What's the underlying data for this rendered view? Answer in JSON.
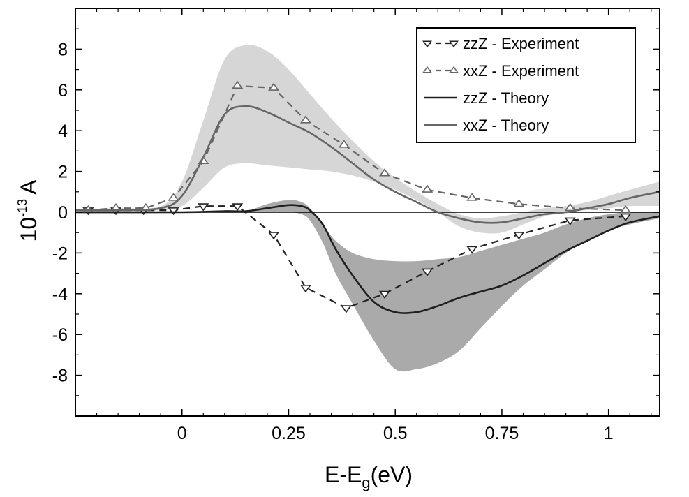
{
  "chart_data": {
    "type": "line",
    "xlabel_main": "E-E",
    "xlabel_sub": "g",
    "xlabel_unit": "(eV)",
    "ylabel_base": "10",
    "ylabel_exp": "-13",
    "ylabel_var": "A",
    "xlim": [
      -0.25,
      1.12
    ],
    "ylim": [
      -10,
      10
    ],
    "xticks": [
      0,
      0.25,
      0.5,
      0.75,
      1
    ],
    "xtick_labels": [
      "0",
      "0.25",
      "0.5",
      "0.75",
      "1"
    ],
    "yticks": [
      -8,
      -6,
      -4,
      -2,
      0,
      2,
      4,
      6,
      8
    ],
    "ytick_labels": [
      "-8",
      "-6",
      "-4",
      "-2",
      "0",
      "2",
      "4",
      "6",
      "8"
    ],
    "legend_position": "top-right",
    "colors": {
      "zz_band": "#aaaaaa",
      "xx_band": "#d6d6d6",
      "zz": "#1f1f1f",
      "xx": "#666666"
    },
    "bands": [
      {
        "for": "xxZ",
        "x": [
          -0.25,
          -0.15,
          -0.05,
          0.0,
          0.05,
          0.1,
          0.15,
          0.2,
          0.25,
          0.3,
          0.35,
          0.4,
          0.45,
          0.5,
          0.55,
          0.6,
          0.65,
          0.7,
          0.75,
          0.8,
          0.85,
          0.9,
          0.95,
          1.0,
          1.05,
          1.12
        ],
        "upper": [
          0.15,
          0.2,
          0.3,
          1.5,
          4.5,
          7.5,
          8.2,
          7.9,
          7.0,
          5.8,
          4.6,
          3.5,
          2.5,
          1.7,
          1.0,
          0.4,
          -0.1,
          -0.3,
          -0.2,
          0.0,
          0.2,
          0.3,
          0.5,
          0.8,
          1.1,
          1.5
        ],
        "lower": [
          0.1,
          0.1,
          0.1,
          0.3,
          1.2,
          2.2,
          2.4,
          2.3,
          2.2,
          2.1,
          2.0,
          1.8,
          1.5,
          1.1,
          0.6,
          0.0,
          -0.7,
          -1.0,
          -1.0,
          -0.6,
          -0.2,
          0.0,
          0.1,
          0.2,
          0.3,
          0.3
        ]
      },
      {
        "for": "zzZ",
        "x": [
          0.15,
          0.2,
          0.25,
          0.28,
          0.3,
          0.33,
          0.36,
          0.4,
          0.45,
          0.5,
          0.55,
          0.6,
          0.65,
          0.7,
          0.75,
          0.8,
          0.85,
          0.9,
          0.95,
          1.0,
          1.05,
          1.12
        ],
        "upper": [
          0.0,
          0.4,
          0.6,
          0.5,
          0.2,
          -0.6,
          -1.4,
          -2.0,
          -2.3,
          -2.4,
          -2.4,
          -2.3,
          -2.2,
          -1.9,
          -1.6,
          -1.3,
          -1.0,
          -0.6,
          -0.3,
          -0.1,
          0.0,
          0.0
        ],
        "lower": [
          0.0,
          0.0,
          0.0,
          -0.1,
          -0.4,
          -1.5,
          -3.0,
          -4.5,
          -6.3,
          -7.7,
          -7.7,
          -7.4,
          -6.8,
          -5.7,
          -4.6,
          -3.6,
          -2.8,
          -2.0,
          -1.4,
          -0.9,
          -0.6,
          -0.3
        ]
      }
    ],
    "series": [
      {
        "name": "zzZ - Experiment",
        "style": "dashed-marker",
        "marker": "triangle-down",
        "color": "#222222",
        "x": [
          -0.22,
          -0.155,
          -0.09,
          -0.02,
          0.05,
          0.13,
          0.215,
          0.29,
          0.385,
          0.475,
          0.575,
          0.68,
          0.79,
          0.91,
          1.04
        ],
        "y": [
          0.1,
          0.1,
          0.1,
          0.1,
          0.3,
          0.3,
          -1.1,
          -3.7,
          -4.7,
          -4.0,
          -2.9,
          -1.8,
          -1.1,
          -0.4,
          -0.2
        ]
      },
      {
        "name": "xxZ - Experiment",
        "style": "dashed-marker",
        "marker": "triangle-up",
        "color": "#666666",
        "x": [
          -0.22,
          -0.155,
          -0.085,
          -0.02,
          0.05,
          0.13,
          0.215,
          0.29,
          0.38,
          0.475,
          0.575,
          0.68,
          0.79,
          0.91,
          1.04
        ],
        "y": [
          0.1,
          0.2,
          0.2,
          0.7,
          2.5,
          6.2,
          6.1,
          4.5,
          3.3,
          1.9,
          1.1,
          0.7,
          0.4,
          0.2,
          0.1
        ]
      },
      {
        "name": "zzZ - Theory",
        "style": "solid",
        "color": "#1f1f1f",
        "x": [
          -0.25,
          0.0,
          0.1,
          0.15,
          0.2,
          0.25,
          0.28,
          0.3,
          0.33,
          0.36,
          0.4,
          0.45,
          0.5,
          0.55,
          0.6,
          0.65,
          0.7,
          0.75,
          0.8,
          0.85,
          0.9,
          0.95,
          1.0,
          1.05,
          1.12
        ],
        "y": [
          0.0,
          0.0,
          0.05,
          0.05,
          0.2,
          0.35,
          0.3,
          0.1,
          -0.6,
          -1.8,
          -3.1,
          -4.4,
          -4.9,
          -4.9,
          -4.6,
          -4.2,
          -3.9,
          -3.6,
          -3.1,
          -2.5,
          -1.9,
          -1.4,
          -0.9,
          -0.5,
          -0.2
        ]
      },
      {
        "name": "xxZ - Theory",
        "style": "solid",
        "color": "#666666",
        "x": [
          -0.25,
          -0.15,
          -0.05,
          0.0,
          0.05,
          0.1,
          0.15,
          0.2,
          0.25,
          0.3,
          0.35,
          0.4,
          0.45,
          0.5,
          0.55,
          0.6,
          0.65,
          0.7,
          0.75,
          0.8,
          0.85,
          0.9,
          0.95,
          1.0,
          1.05,
          1.12
        ],
        "y": [
          0.1,
          0.1,
          0.2,
          0.8,
          2.7,
          4.8,
          5.2,
          4.9,
          4.4,
          3.9,
          3.2,
          2.4,
          1.6,
          1.0,
          0.5,
          0.0,
          -0.3,
          -0.5,
          -0.5,
          -0.3,
          -0.1,
          0.0,
          0.2,
          0.4,
          0.7,
          1.0
        ]
      }
    ]
  }
}
